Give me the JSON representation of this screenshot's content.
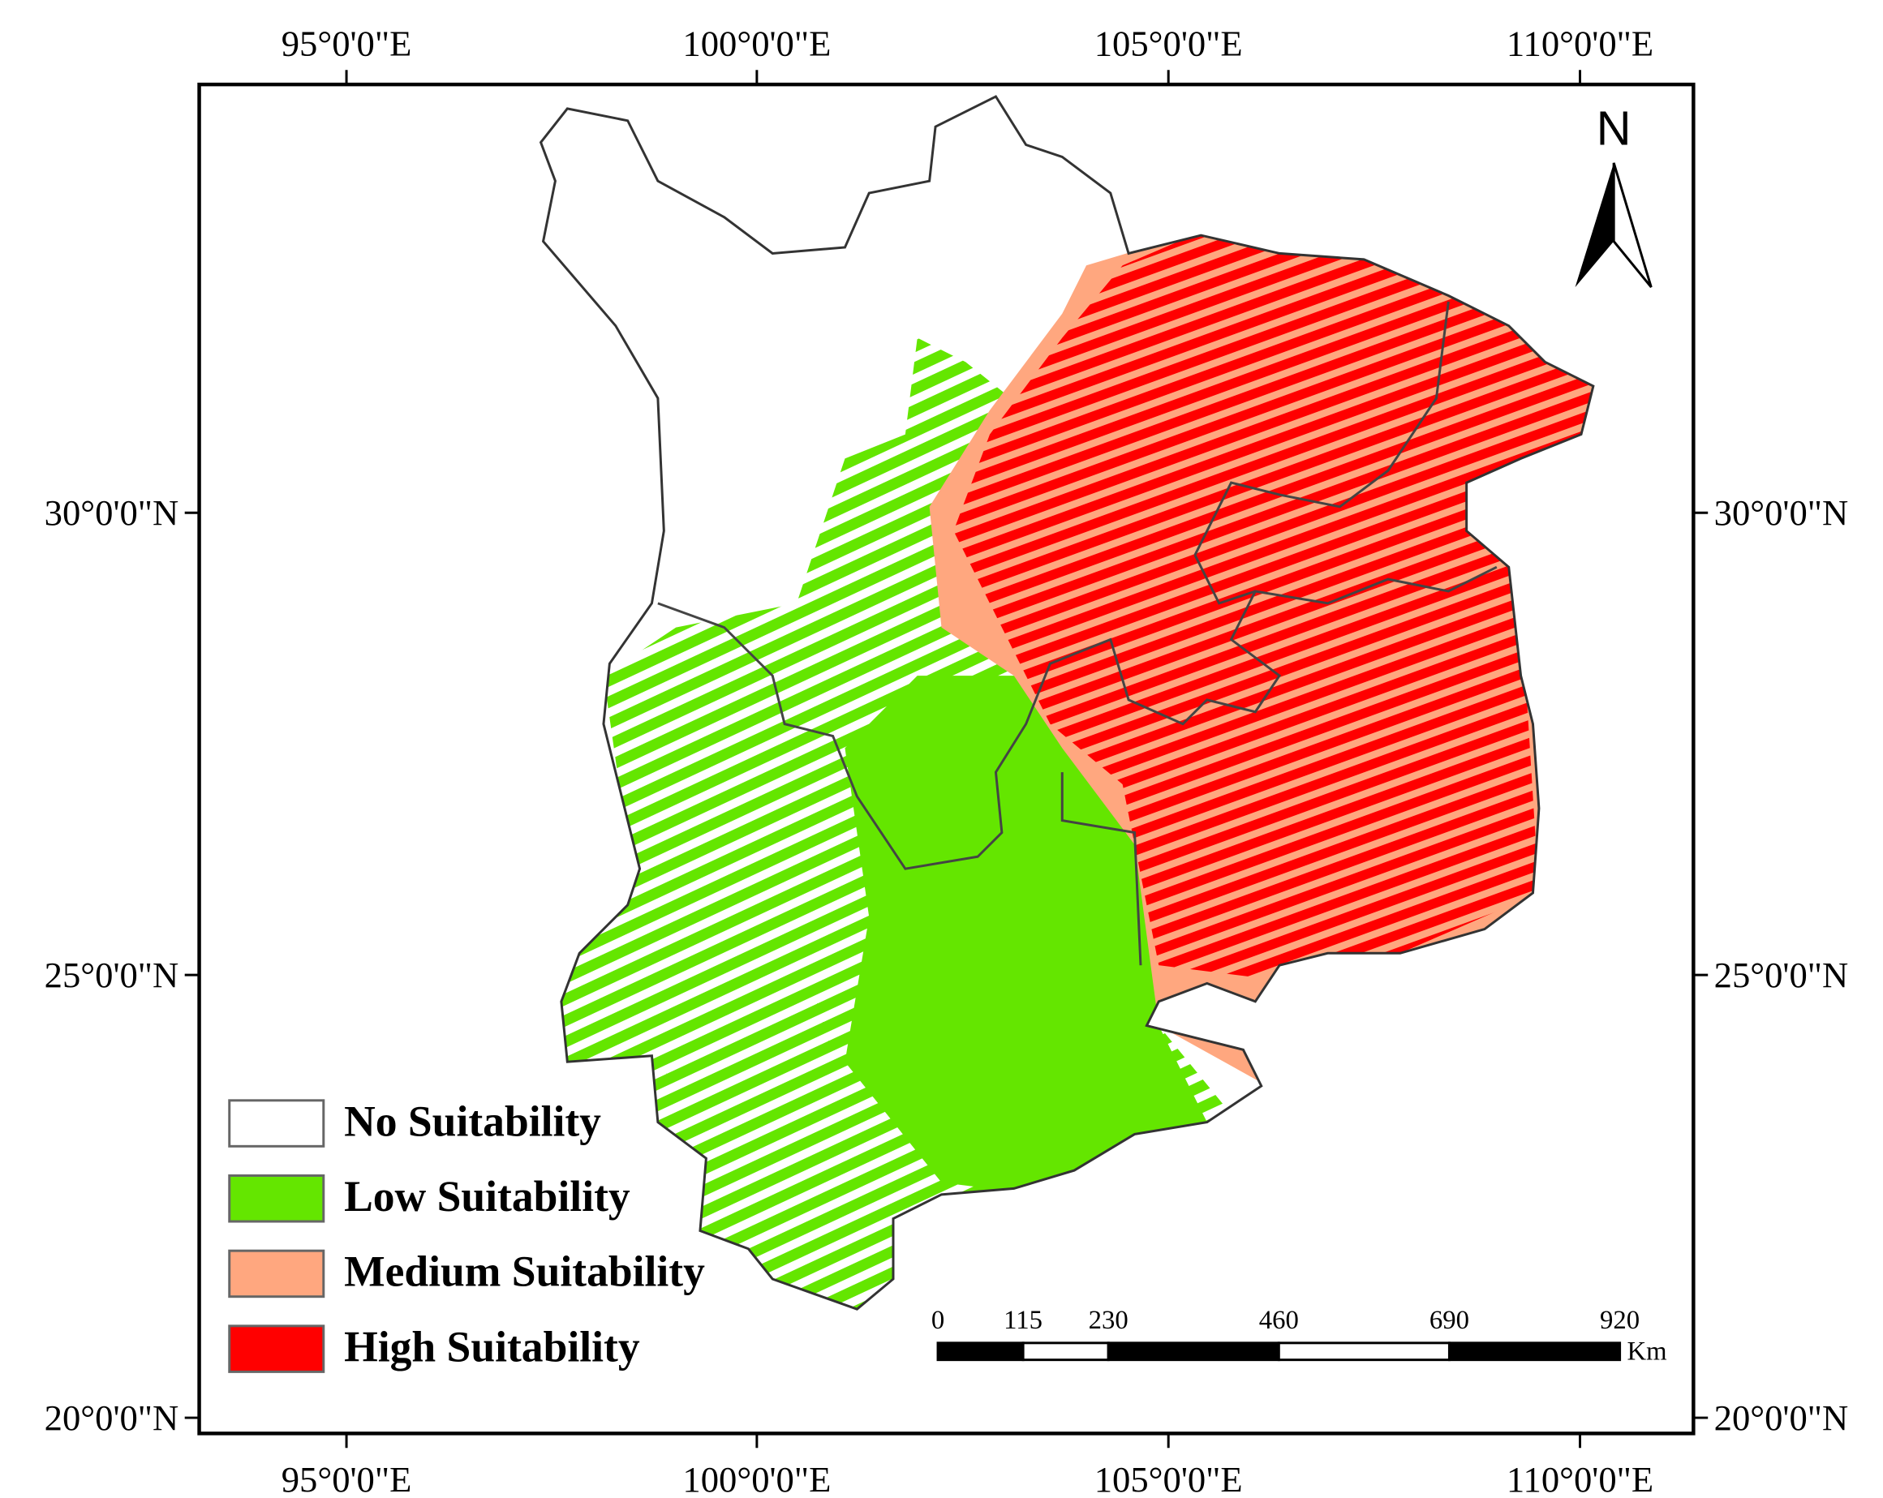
{
  "map": {
    "lon_labels": [
      "95°0'0\"E",
      "100°0'0\"E",
      "105°0'0\"E",
      "110°0'0\"E"
    ],
    "lat_labels": [
      "30°0'0\"N",
      "25°0'0\"N",
      "20°0'0\"N"
    ],
    "north": "N",
    "legend": [
      {
        "label": "No Suitability",
        "color": "#ffffff"
      },
      {
        "label": "Low Suitability",
        "color": "#64e600"
      },
      {
        "label": "Medium Suitability",
        "color": "#ffa77f"
      },
      {
        "label": "High Suitability",
        "color": "#ff0000"
      }
    ],
    "scale_bar": {
      "ticks": [
        0,
        115,
        230,
        460,
        690,
        920
      ],
      "unit": "Km"
    }
  }
}
